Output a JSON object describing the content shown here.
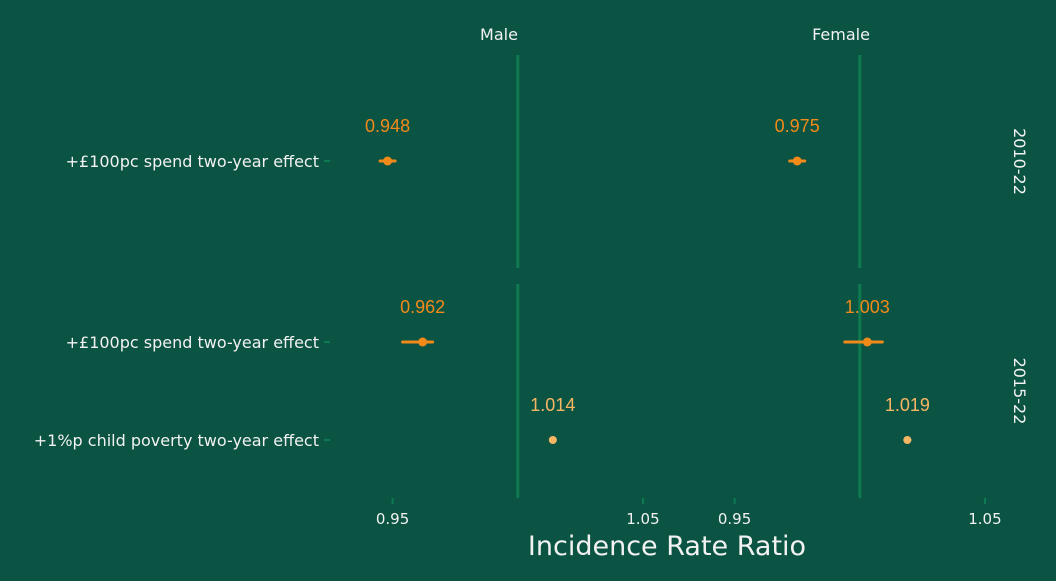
{
  "chart_data": {
    "type": "forest",
    "xlabel": "Incidence Rate Ratio",
    "panels": [
      "Male",
      "Female"
    ],
    "row_groups": [
      "2010-22",
      "2015-22"
    ],
    "xlim": [
      0.925,
      1.06
    ],
    "ticks": [
      0.95,
      1.05
    ],
    "tick_labels": [
      "0.95",
      "1.05"
    ],
    "reference_value": 1.0,
    "rows": [
      {
        "group": "2010-22",
        "label": "+£100pc spend two-year effect"
      },
      {
        "group": "2015-22",
        "label": "+£100pc spend two-year effect"
      },
      {
        "group": "2015-22",
        "label": "+1%p child poverty two-year effect"
      }
    ],
    "points": [
      {
        "panel": "Male",
        "row": 0,
        "value": 0.948,
        "label": "0.948",
        "lo": 0.945,
        "hi": 0.951,
        "color": "#f28a1a"
      },
      {
        "panel": "Female",
        "row": 0,
        "value": 0.975,
        "label": "0.975",
        "lo": 0.972,
        "hi": 0.978,
        "color": "#f28a1a"
      },
      {
        "panel": "Male",
        "row": 1,
        "value": 0.962,
        "label": "0.962",
        "lo": 0.954,
        "hi": 0.966,
        "color": "#f28a1a"
      },
      {
        "panel": "Female",
        "row": 1,
        "value": 1.003,
        "label": "1.003",
        "lo": 0.994,
        "hi": 1.009,
        "color": "#f28a1a"
      },
      {
        "panel": "Male",
        "row": 2,
        "value": 1.014,
        "label": "1.014",
        "lo": 1.013,
        "hi": 1.015,
        "color": "#f8b564"
      },
      {
        "panel": "Female",
        "row": 2,
        "value": 1.019,
        "label": "1.019",
        "lo": 1.018,
        "hi": 1.02,
        "color": "#f8b564"
      }
    ],
    "colors": {
      "background": "#0b5342",
      "reference_line": "#0f7a52",
      "text": "#f2f2f2"
    }
  }
}
